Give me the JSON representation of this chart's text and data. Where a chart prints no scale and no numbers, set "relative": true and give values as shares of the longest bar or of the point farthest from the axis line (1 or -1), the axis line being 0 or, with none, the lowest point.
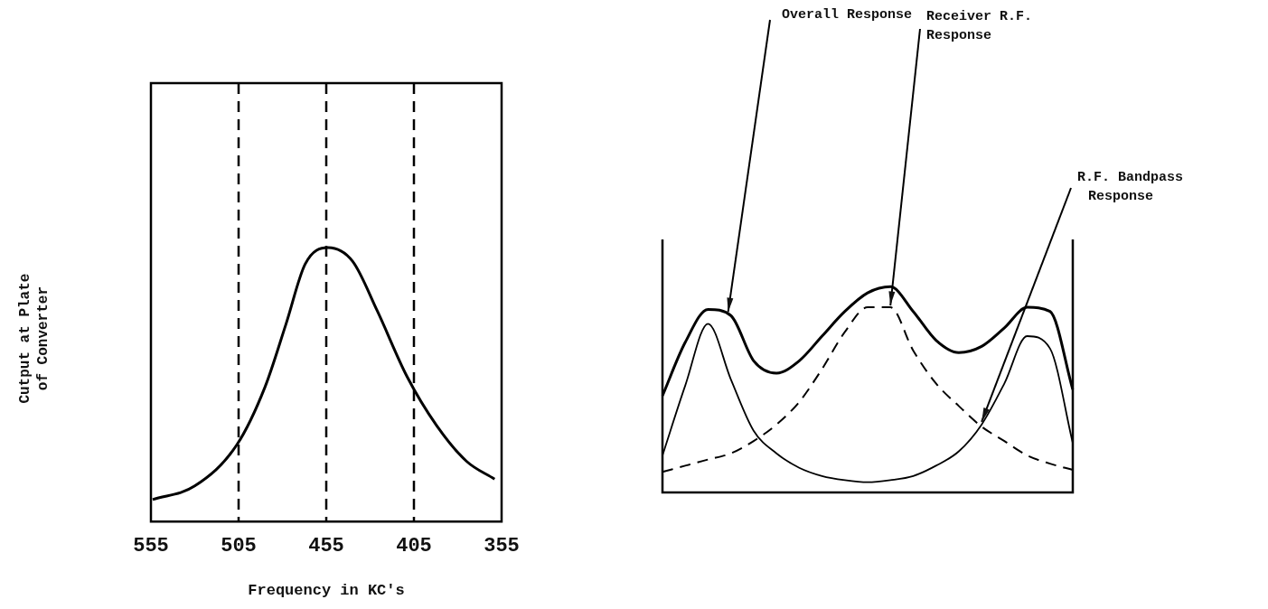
{
  "chart_data": [
    {
      "type": "line",
      "ylabel": "Cutput at Plate of Converter",
      "xlabel": "Frequency in KC's",
      "relative": true,
      "xlim": [
        555,
        355
      ],
      "xticks": [
        555,
        505,
        455,
        405,
        355
      ],
      "x": [
        554,
        530,
        506,
        490,
        478,
        467,
        454,
        440,
        426,
        409,
        392,
        375,
        359
      ],
      "series": [
        {
          "color": "#000000",
          "values": [
            0.08,
            0.13,
            0.28,
            0.49,
            0.72,
            0.94,
            1.0,
            0.95,
            0.77,
            0.53,
            0.35,
            0.22,
            0.155
          ]
        }
      ],
      "ref_lines": [
        {
          "axis": "x",
          "value": 505,
          "color": "#000000",
          "line_style": "dashed"
        },
        {
          "axis": "x",
          "value": 455,
          "color": "#000000",
          "line_style": "dashed"
        },
        {
          "axis": "x",
          "value": 405,
          "color": "#000000",
          "line_style": "dashed"
        }
      ]
    },
    {
      "type": "line",
      "relative": true,
      "categories": [
        null,
        null,
        null,
        null,
        null,
        null,
        null,
        null,
        null,
        null,
        null,
        null,
        null,
        null,
        null,
        null,
        null,
        null,
        null
      ],
      "series": [
        {
          "name": "Overall Response",
          "color": "#000000",
          "line_style": "solid",
          "values": [
            0.47,
            0.73,
            0.89,
            0.86,
            0.64,
            0.58,
            0.64,
            0.76,
            0.88,
            0.97,
            1.0,
            0.88,
            0.74,
            0.68,
            0.71,
            0.8,
            0.9,
            0.88,
            0.5
          ]
        },
        {
          "name": "Receiver R.F. Response",
          "color": "#000000",
          "line_style": "dashed",
          "values": [
            0.1,
            0.13,
            0.16,
            0.19,
            0.25,
            0.33,
            0.44,
            0.6,
            0.78,
            0.9,
            0.9,
            0.69,
            0.53,
            0.42,
            0.32,
            0.25,
            0.18,
            0.14,
            0.11
          ]
        },
        {
          "name": "R.F. Bandpass Response",
          "color": "#000000",
          "line_style": "solid",
          "values": [
            0.18,
            0.52,
            0.82,
            0.55,
            0.3,
            0.19,
            0.12,
            0.08,
            0.06,
            0.05,
            0.06,
            0.08,
            0.13,
            0.2,
            0.33,
            0.53,
            0.76,
            0.7,
            0.24
          ]
        }
      ]
    }
  ]
}
